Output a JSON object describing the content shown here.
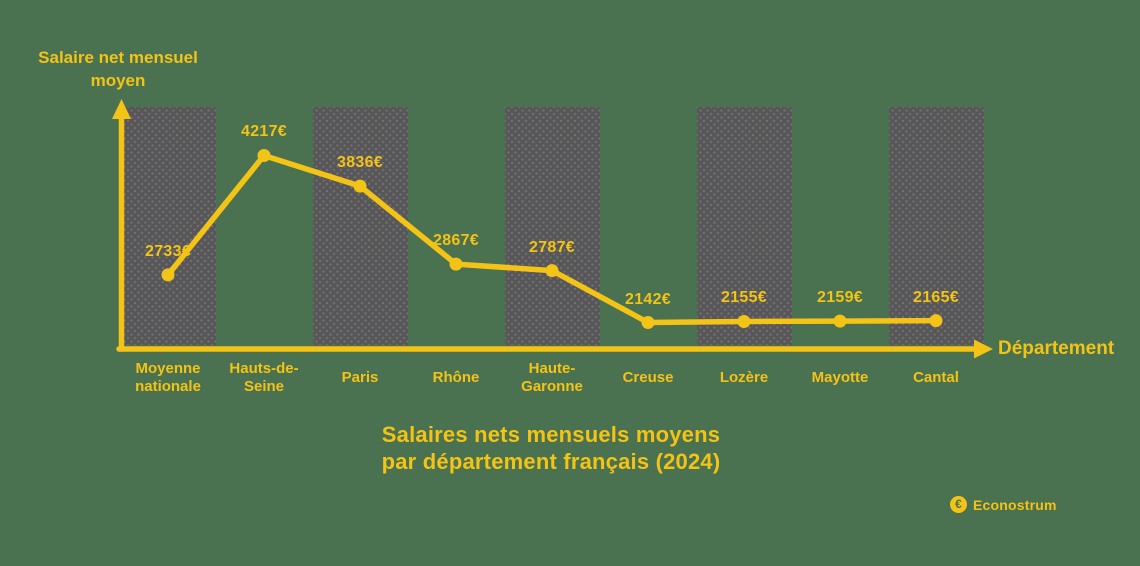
{
  "colors": {
    "background": "#4A7150",
    "accent_yellow": "#F3C316",
    "bar_gray": "#57565A"
  },
  "y_axis": {
    "label": "Salaire net mensuel moyen",
    "label_lines": [
      "Salaire net mensuel",
      "moyen"
    ]
  },
  "x_axis": {
    "label": "Département"
  },
  "title": {
    "lines": [
      "Salaires nets mensuels moyens",
      "par département français (2024)"
    ]
  },
  "brand": {
    "name": "Econostrum",
    "euro_symbol": "€"
  },
  "chart_data": {
    "type": "line",
    "title": "Salaires nets mensuels moyens par département français (2024)",
    "xlabel": "Département",
    "ylabel": "Salaire net mensuel moyen",
    "grid": false,
    "legend": false,
    "marker": "circle",
    "line_color": "#F3C316",
    "categories": [
      "Moyenne nationale",
      "Hauts-de-Seine",
      "Paris",
      "Rhône",
      "Haute-Garonne",
      "Creuse",
      "Lozère",
      "Mayotte",
      "Cantal"
    ],
    "category_label_lines": [
      [
        "Moyenne",
        "nationale"
      ],
      [
        "Hauts-de-",
        "Seine"
      ],
      [
        "Paris"
      ],
      [
        "Rhône"
      ],
      [
        "Haute-",
        "Garonne"
      ],
      [
        "Creuse"
      ],
      [
        "Lozère"
      ],
      [
        "Mayotte"
      ],
      [
        "Cantal"
      ]
    ],
    "values": [
      2733,
      4217,
      3836,
      2867,
      2787,
      2142,
      2155,
      2159,
      2165
    ],
    "value_labels": [
      "2733€",
      "4217€",
      "3836€",
      "2867€",
      "2787€",
      "2142€",
      "2155€",
      "2159€",
      "2165€"
    ],
    "background_bars_on": [
      0,
      2,
      4,
      6,
      8
    ],
    "unit": "€"
  }
}
